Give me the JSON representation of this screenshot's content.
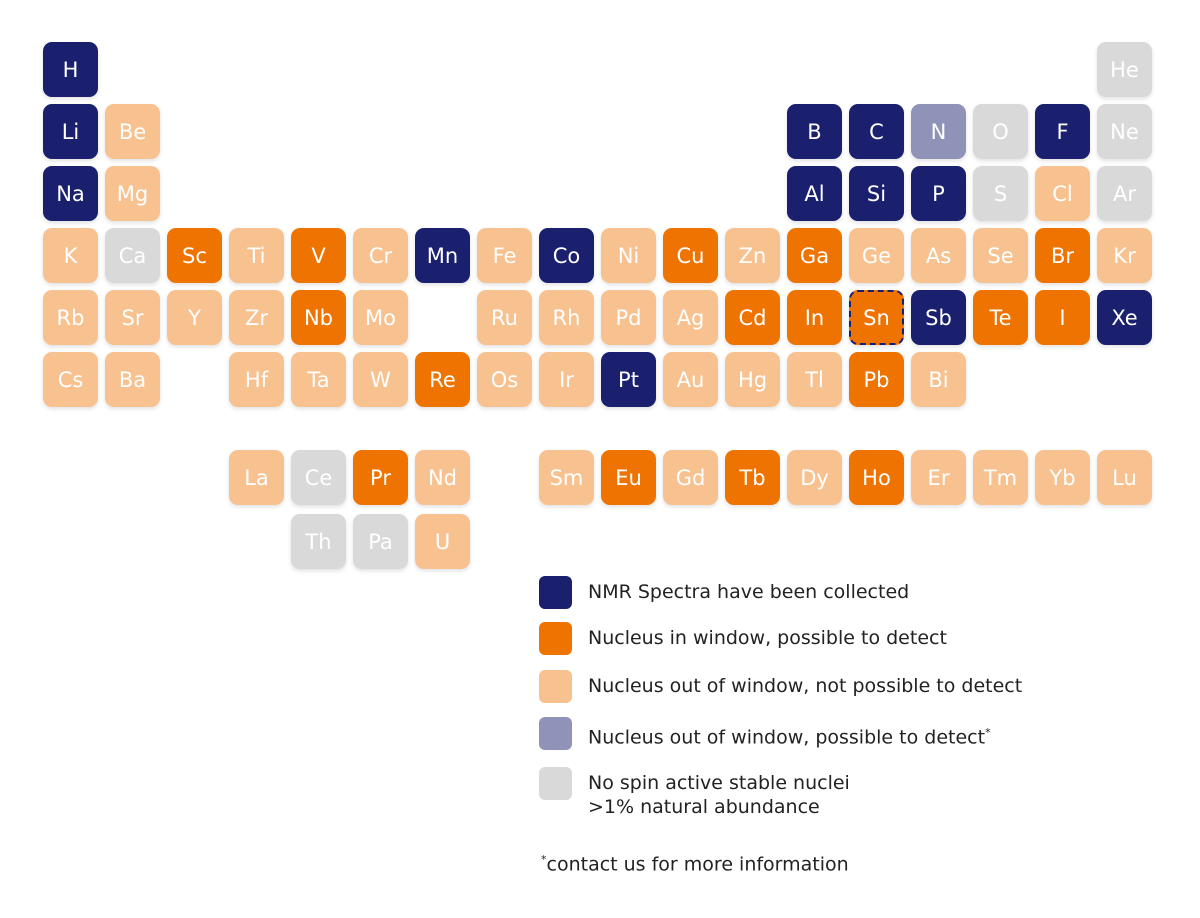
{
  "colors": {
    "collected": "#1a1f6e",
    "in_window": "#ee7300",
    "out_window": "#f7c28f",
    "out_window_possible": "#8f93b8",
    "no_spin": "#d9d9d9"
  },
  "elements": [
    {
      "symbol": "H",
      "group": 1,
      "period": 1,
      "category": "collected"
    },
    {
      "symbol": "He",
      "group": 18,
      "period": 1,
      "category": "no_spin"
    },
    {
      "symbol": "Li",
      "group": 1,
      "period": 2,
      "category": "collected"
    },
    {
      "symbol": "Be",
      "group": 2,
      "period": 2,
      "category": "out_window"
    },
    {
      "symbol": "B",
      "group": 13,
      "period": 2,
      "category": "collected"
    },
    {
      "symbol": "C",
      "group": 14,
      "period": 2,
      "category": "collected"
    },
    {
      "symbol": "N",
      "group": 15,
      "period": 2,
      "category": "out_window_possible"
    },
    {
      "symbol": "O",
      "group": 16,
      "period": 2,
      "category": "no_spin"
    },
    {
      "symbol": "F",
      "group": 17,
      "period": 2,
      "category": "collected"
    },
    {
      "symbol": "Ne",
      "group": 18,
      "period": 2,
      "category": "no_spin"
    },
    {
      "symbol": "Na",
      "group": 1,
      "period": 3,
      "category": "collected"
    },
    {
      "symbol": "Mg",
      "group": 2,
      "period": 3,
      "category": "out_window"
    },
    {
      "symbol": "Al",
      "group": 13,
      "period": 3,
      "category": "collected"
    },
    {
      "symbol": "Si",
      "group": 14,
      "period": 3,
      "category": "collected"
    },
    {
      "symbol": "P",
      "group": 15,
      "period": 3,
      "category": "collected"
    },
    {
      "symbol": "S",
      "group": 16,
      "period": 3,
      "category": "no_spin"
    },
    {
      "symbol": "Cl",
      "group": 17,
      "period": 3,
      "category": "out_window"
    },
    {
      "symbol": "Ar",
      "group": 18,
      "period": 3,
      "category": "no_spin"
    },
    {
      "symbol": "K",
      "group": 1,
      "period": 4,
      "category": "out_window"
    },
    {
      "symbol": "Ca",
      "group": 2,
      "period": 4,
      "category": "no_spin"
    },
    {
      "symbol": "Sc",
      "group": 3,
      "period": 4,
      "category": "in_window"
    },
    {
      "symbol": "Ti",
      "group": 4,
      "period": 4,
      "category": "out_window"
    },
    {
      "symbol": "V",
      "group": 5,
      "period": 4,
      "category": "in_window"
    },
    {
      "symbol": "Cr",
      "group": 6,
      "period": 4,
      "category": "out_window"
    },
    {
      "symbol": "Mn",
      "group": 7,
      "period": 4,
      "category": "collected"
    },
    {
      "symbol": "Fe",
      "group": 8,
      "period": 4,
      "category": "out_window"
    },
    {
      "symbol": "Co",
      "group": 9,
      "period": 4,
      "category": "collected"
    },
    {
      "symbol": "Ni",
      "group": 10,
      "period": 4,
      "category": "out_window"
    },
    {
      "symbol": "Cu",
      "group": 11,
      "period": 4,
      "category": "in_window"
    },
    {
      "symbol": "Zn",
      "group": 12,
      "period": 4,
      "category": "out_window"
    },
    {
      "symbol": "Ga",
      "group": 13,
      "period": 4,
      "category": "in_window"
    },
    {
      "symbol": "Ge",
      "group": 14,
      "period": 4,
      "category": "out_window"
    },
    {
      "symbol": "As",
      "group": 15,
      "period": 4,
      "category": "out_window"
    },
    {
      "symbol": "Se",
      "group": 16,
      "period": 4,
      "category": "out_window"
    },
    {
      "symbol": "Br",
      "group": 17,
      "period": 4,
      "category": "in_window"
    },
    {
      "symbol": "Kr",
      "group": 18,
      "period": 4,
      "category": "out_window"
    },
    {
      "symbol": "Rb",
      "group": 1,
      "period": 5,
      "category": "out_window"
    },
    {
      "symbol": "Sr",
      "group": 2,
      "period": 5,
      "category": "out_window"
    },
    {
      "symbol": "Y",
      "group": 3,
      "period": 5,
      "category": "out_window"
    },
    {
      "symbol": "Zr",
      "group": 4,
      "period": 5,
      "category": "out_window"
    },
    {
      "symbol": "Nb",
      "group": 5,
      "period": 5,
      "category": "in_window"
    },
    {
      "symbol": "Mo",
      "group": 6,
      "period": 5,
      "category": "out_window"
    },
    {
      "symbol": "Ru",
      "group": 8,
      "period": 5,
      "category": "out_window"
    },
    {
      "symbol": "Rh",
      "group": 9,
      "period": 5,
      "category": "out_window"
    },
    {
      "symbol": "Pd",
      "group": 10,
      "period": 5,
      "category": "out_window"
    },
    {
      "symbol": "Ag",
      "group": 11,
      "period": 5,
      "category": "out_window"
    },
    {
      "symbol": "Cd",
      "group": 12,
      "period": 5,
      "category": "in_window"
    },
    {
      "symbol": "In",
      "group": 13,
      "period": 5,
      "category": "in_window"
    },
    {
      "symbol": "Sn",
      "group": 14,
      "period": 5,
      "category": "in_window",
      "highlighted": true
    },
    {
      "symbol": "Sb",
      "group": 15,
      "period": 5,
      "category": "collected"
    },
    {
      "symbol": "Te",
      "group": 16,
      "period": 5,
      "category": "in_window"
    },
    {
      "symbol": "I",
      "group": 17,
      "period": 5,
      "category": "in_window"
    },
    {
      "symbol": "Xe",
      "group": 18,
      "period": 5,
      "category": "collected"
    },
    {
      "symbol": "Cs",
      "group": 1,
      "period": 6,
      "category": "out_window"
    },
    {
      "symbol": "Ba",
      "group": 2,
      "period": 6,
      "category": "out_window"
    },
    {
      "symbol": "Hf",
      "group": 4,
      "period": 6,
      "category": "out_window"
    },
    {
      "symbol": "Ta",
      "group": 5,
      "period": 6,
      "category": "out_window"
    },
    {
      "symbol": "W",
      "group": 6,
      "period": 6,
      "category": "out_window"
    },
    {
      "symbol": "Re",
      "group": 7,
      "period": 6,
      "category": "in_window"
    },
    {
      "symbol": "Os",
      "group": 8,
      "period": 6,
      "category": "out_window"
    },
    {
      "symbol": "Ir",
      "group": 9,
      "period": 6,
      "category": "out_window"
    },
    {
      "symbol": "Pt",
      "group": 10,
      "period": 6,
      "category": "collected"
    },
    {
      "symbol": "Au",
      "group": 11,
      "period": 6,
      "category": "out_window"
    },
    {
      "symbol": "Hg",
      "group": 12,
      "period": 6,
      "category": "out_window"
    },
    {
      "symbol": "Tl",
      "group": 13,
      "period": 6,
      "category": "out_window"
    },
    {
      "symbol": "Pb",
      "group": 14,
      "period": 6,
      "category": "in_window"
    },
    {
      "symbol": "Bi",
      "group": 15,
      "period": 6,
      "category": "out_window"
    },
    {
      "symbol": "La",
      "group": 4,
      "period": "lanthanide",
      "category": "out_window"
    },
    {
      "symbol": "Ce",
      "group": 5,
      "period": "lanthanide",
      "category": "no_spin"
    },
    {
      "symbol": "Pr",
      "group": 6,
      "period": "lanthanide",
      "category": "in_window"
    },
    {
      "symbol": "Nd",
      "group": 7,
      "period": "lanthanide",
      "category": "out_window"
    },
    {
      "symbol": "Sm",
      "group": 9,
      "period": "lanthanide",
      "category": "out_window"
    },
    {
      "symbol": "Eu",
      "group": 10,
      "period": "lanthanide",
      "category": "in_window"
    },
    {
      "symbol": "Gd",
      "group": 11,
      "period": "lanthanide",
      "category": "out_window"
    },
    {
      "symbol": "Tb",
      "group": 12,
      "period": "lanthanide",
      "category": "in_window"
    },
    {
      "symbol": "Dy",
      "group": 13,
      "period": "lanthanide",
      "category": "out_window"
    },
    {
      "symbol": "Ho",
      "group": 14,
      "period": "lanthanide",
      "category": "in_window"
    },
    {
      "symbol": "Er",
      "group": 15,
      "period": "lanthanide",
      "category": "out_window"
    },
    {
      "symbol": "Tm",
      "group": 16,
      "period": "lanthanide",
      "category": "out_window"
    },
    {
      "symbol": "Yb",
      "group": 17,
      "period": "lanthanide",
      "category": "out_window"
    },
    {
      "symbol": "Lu",
      "group": 18,
      "period": "lanthanide",
      "category": "out_window"
    },
    {
      "symbol": "Th",
      "group": 5,
      "period": "actinide",
      "category": "no_spin"
    },
    {
      "symbol": "Pa",
      "group": 6,
      "period": "actinide",
      "category": "no_spin"
    },
    {
      "symbol": "U",
      "group": 7,
      "period": "actinide",
      "category": "out_window"
    }
  ],
  "legend": [
    {
      "category": "collected",
      "label": "NMR Spectra have been collected"
    },
    {
      "category": "in_window",
      "label": "Nucleus in window, possible to detect"
    },
    {
      "category": "out_window",
      "label": "Nucleus out of window, not possible to detect"
    },
    {
      "category": "out_window_possible",
      "label": "Nucleus out of window, possible to detect",
      "mark": "*"
    },
    {
      "category": "no_spin",
      "label": "No spin active stable nuclei",
      "label_line2": ">1% natural abundance"
    }
  ],
  "footnote": {
    "mark": "*",
    "text": "contact us for more information"
  }
}
